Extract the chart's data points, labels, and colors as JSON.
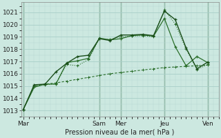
{
  "xlabel": "Pression niveau de la mer( hPa )",
  "background_color": "#cce8e0",
  "grid_color_major": "#a8cec8",
  "grid_color_minor": "#b8d8d2",
  "line_color1": "#2a6e2a",
  "line_color2": "#1a4e1a",
  "ylim": [
    1012.5,
    1021.8
  ],
  "yticks": [
    1013,
    1014,
    1015,
    1016,
    1017,
    1018,
    1019,
    1020,
    1021
  ],
  "day_labels": [
    "Mar",
    "Sam",
    "Mer",
    "Jeu",
    "Ven"
  ],
  "day_positions": [
    0.0,
    3.5,
    4.5,
    6.5,
    8.5
  ],
  "vline_positions": [
    0.0,
    3.5,
    4.5,
    6.5,
    8.5
  ],
  "xlim": [
    -0.1,
    9.0
  ],
  "series1_x": [
    0,
    0.5,
    1.0,
    1.5,
    2.0,
    2.5,
    3.0,
    3.5,
    4.0,
    4.5,
    5.0,
    5.5,
    6.0,
    6.5,
    7.0,
    7.5,
    8.0,
    8.5
  ],
  "series1_y": [
    1013.1,
    1014.9,
    1015.15,
    1015.15,
    1016.9,
    1017.05,
    1017.25,
    1018.9,
    1018.75,
    1018.85,
    1019.1,
    1019.15,
    1019.05,
    1020.5,
    1018.2,
    1016.65,
    1017.4,
    1016.9
  ],
  "series2_x": [
    0,
    0.5,
    1.0,
    1.5,
    2.0,
    2.5,
    3.0,
    3.5,
    4.0,
    4.5,
    5.0,
    5.5,
    6.0,
    6.5,
    7.0,
    7.5,
    8.0,
    8.5
  ],
  "series2_y": [
    1013.1,
    1015.1,
    1015.15,
    1016.15,
    1016.85,
    1017.4,
    1017.5,
    1018.85,
    1018.7,
    1019.15,
    1019.15,
    1019.2,
    1019.1,
    1021.1,
    1020.4,
    1018.1,
    1016.4,
    1016.95
  ],
  "series3_x": [
    0,
    0.5,
    1.0,
    1.5,
    2.0,
    2.5,
    3.0,
    3.5,
    4.0,
    4.5,
    5.0,
    5.5,
    6.0,
    6.5,
    7.0,
    7.5,
    8.0,
    8.5
  ],
  "series3_y": [
    1013.1,
    1015.0,
    1015.1,
    1015.2,
    1016.75,
    1016.65,
    1017.15,
    1018.85,
    1018.8,
    1019.0,
    1019.05,
    1019.1,
    1019.0,
    1021.2,
    1020.05,
    1018.0,
    1016.35,
    1016.75
  ],
  "series4_x": [
    0,
    0.5,
    1.0,
    1.5,
    2.0,
    2.5,
    3.0,
    3.5,
    4.0,
    4.5,
    5.0,
    5.5,
    6.0,
    6.5,
    7.0,
    7.5,
    8.0,
    8.5
  ],
  "series4_y": [
    1013.1,
    1015.0,
    1015.15,
    1015.25,
    1015.4,
    1015.55,
    1015.7,
    1015.85,
    1016.0,
    1016.1,
    1016.2,
    1016.3,
    1016.4,
    1016.5,
    1016.55,
    1016.6,
    1016.65,
    1016.7
  ]
}
